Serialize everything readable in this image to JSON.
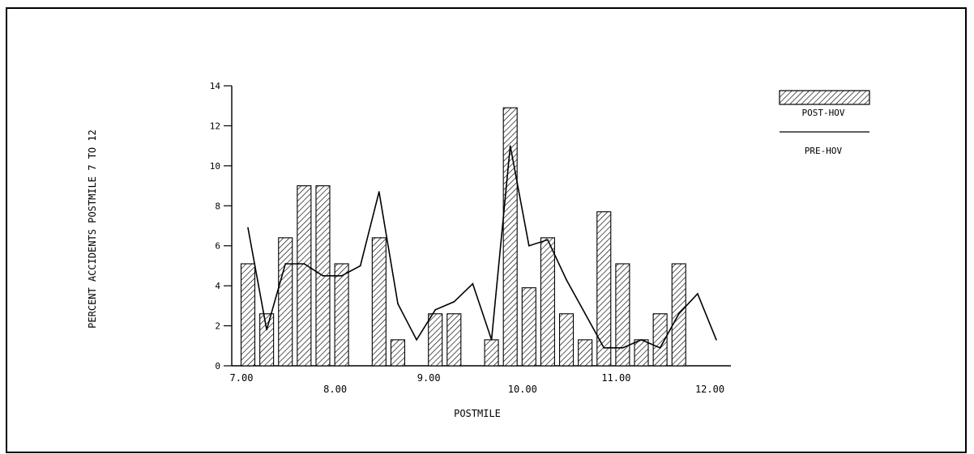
{
  "chart_data": {
    "type": "bar",
    "xlabel": "POSTMILE",
    "ylabel": "PERCENT ACCIDENTS POSTMILE 7 TO 12",
    "ylim": [
      0,
      14
    ],
    "yticks": [
      0,
      2,
      4,
      6,
      8,
      10,
      12,
      14
    ],
    "xlim": [
      7.0,
      12.0
    ],
    "xticks": [
      "7.00",
      "8.00",
      "9.00",
      "10.00",
      "11.00",
      "12.00"
    ],
    "legend_position": "top-right",
    "grid": false,
    "series": [
      {
        "name": "POST-HOV",
        "kind": "bar",
        "pattern": "hatch",
        "x": [
          7.0,
          7.2,
          7.4,
          7.6,
          7.8,
          8.0,
          8.4,
          8.6,
          9.0,
          9.2,
          9.6,
          9.8,
          10.0,
          10.2,
          10.4,
          10.6,
          10.8,
          11.0,
          11.2,
          11.4,
          11.6
        ],
        "values": [
          5.1,
          2.6,
          6.4,
          9.0,
          9.0,
          5.1,
          6.4,
          1.3,
          2.6,
          2.6,
          1.3,
          12.9,
          3.9,
          6.4,
          2.6,
          1.3,
          7.7,
          5.1,
          1.3,
          2.6,
          5.1
        ]
      },
      {
        "name": "PRE-HOV",
        "kind": "line",
        "x": [
          7.0,
          7.2,
          7.4,
          7.6,
          7.8,
          8.0,
          8.2,
          8.4,
          8.6,
          8.8,
          9.0,
          9.2,
          9.4,
          9.6,
          9.8,
          10.0,
          10.2,
          10.4,
          10.6,
          10.8,
          11.0,
          11.2,
          11.4,
          11.6,
          11.8,
          12.0
        ],
        "values": [
          6.9,
          1.8,
          5.1,
          5.1,
          4.5,
          4.5,
          5.0,
          8.7,
          3.1,
          1.3,
          2.8,
          3.2,
          4.1,
          1.3,
          11.0,
          6.0,
          6.3,
          4.3,
          2.6,
          0.9,
          0.9,
          1.3,
          0.9,
          2.6,
          3.6,
          1.3
        ]
      }
    ]
  }
}
